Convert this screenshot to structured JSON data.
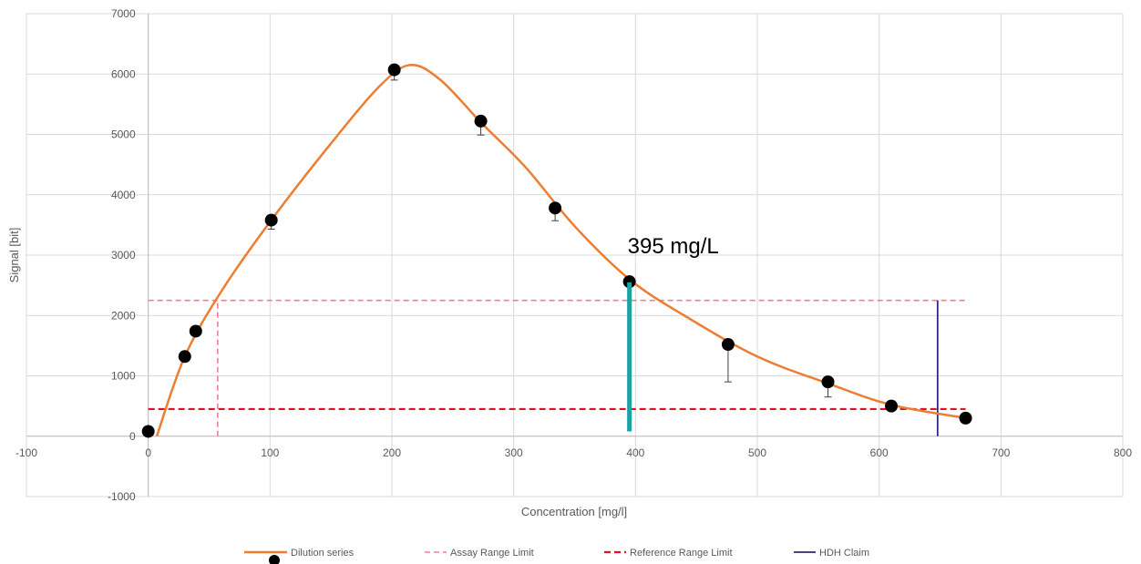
{
  "chart_data": {
    "type": "scatter",
    "xlabel": "Concentration [mg/l]",
    "ylabel": "Signal [bit]",
    "xlim": [
      -100,
      800
    ],
    "ylim": [
      -1000,
      7000
    ],
    "x_ticks": [
      -100,
      0,
      100,
      200,
      300,
      400,
      500,
      600,
      700,
      800
    ],
    "y_ticks": [
      -1000,
      0,
      1000,
      2000,
      3000,
      4000,
      5000,
      6000,
      7000
    ],
    "grid": true,
    "legend_position": "bottom",
    "annotation": {
      "text": "395 mg/L",
      "x": 395,
      "y": 2550,
      "line_color": "#1aa3a3"
    },
    "series": [
      {
        "name": "Dilution series",
        "kind": "points+smooth-line",
        "color": "#ed7d31",
        "marker_color": "#000000",
        "x": [
          0,
          30,
          39,
          101,
          202,
          273,
          334,
          395,
          476,
          558,
          610,
          671
        ],
        "y": [
          80,
          1320,
          1740,
          3580,
          6070,
          5220,
          3780,
          2560,
          1520,
          900,
          500,
          300
        ],
        "error_minus": [
          0,
          0,
          0,
          150,
          170,
          230,
          210,
          0,
          620,
          250,
          0,
          0
        ],
        "curve_x": [
          7,
          30,
          60,
          101,
          150,
          190,
          215,
          240,
          273,
          310,
          350,
          395,
          440,
          500,
          560,
          610,
          671
        ],
        "curve_y": [
          0,
          1320,
          2400,
          3580,
          4850,
          5800,
          6150,
          5900,
          5200,
          4450,
          3480,
          2600,
          2000,
          1320,
          860,
          520,
          300
        ]
      },
      {
        "name": "Assay Range Limit",
        "kind": "dashed-lines",
        "color": "#f0808f",
        "horizontal": {
          "y": 2250,
          "x_from": 0,
          "x_to": 671
        },
        "vertical": {
          "x": 57,
          "y_from": 0,
          "y_to": 2250
        }
      },
      {
        "name": "Reference Range Limit",
        "kind": "dashed-line",
        "color": "#e0102a",
        "horizontal": {
          "y": 450,
          "x_from": 0,
          "x_to": 671
        }
      },
      {
        "name": "HDH Claim",
        "kind": "vertical-line",
        "color": "#2e2a7a",
        "vertical": {
          "x": 648,
          "y_from": 0,
          "y_to": 2250
        }
      }
    ]
  }
}
